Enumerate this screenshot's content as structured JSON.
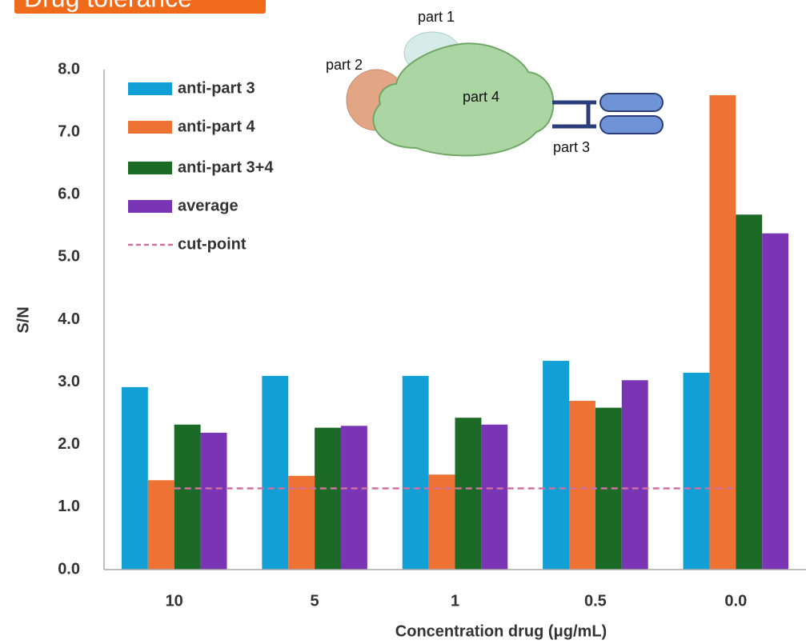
{
  "chart_data": {
    "type": "bar",
    "title": "Drug tolerance",
    "x_label": "Concentration drug (μg/mL)",
    "y_label": "S/N",
    "categories": [
      "10",
      "5",
      "1",
      "0.5",
      "0.0"
    ],
    "series": [
      {
        "name": "anti-part 3",
        "color": "#129fd6",
        "values": [
          2.92,
          3.1,
          3.1,
          3.34,
          3.15
        ]
      },
      {
        "name": "anti-part 4",
        "color": "#ed7233",
        "values": [
          1.43,
          1.5,
          1.52,
          2.7,
          7.59
        ]
      },
      {
        "name": "anti-part 3+4",
        "color": "#1b6b27",
        "values": [
          2.32,
          2.27,
          2.43,
          2.59,
          5.68
        ]
      },
      {
        "name": "average",
        "color": "#7a35b5",
        "values": [
          2.19,
          2.3,
          2.32,
          3.03,
          5.38
        ]
      }
    ],
    "cut_point": {
      "name": "cut-point",
      "color": "#d070a0",
      "values": [
        1.3,
        1.3,
        1.3,
        1.3,
        1.3
      ]
    },
    "ylim": [
      0,
      8
    ],
    "yticks": [
      {
        "value": 0,
        "label": "0.0"
      },
      {
        "value": 1,
        "label": "1.0"
      },
      {
        "value": 2,
        "label": "2.0"
      },
      {
        "value": 3,
        "label": "3.0"
      },
      {
        "value": 4,
        "label": "4.0"
      },
      {
        "value": 5,
        "label": "5.0"
      },
      {
        "value": 6,
        "label": "6.0"
      },
      {
        "value": 7,
        "label": "7.0"
      },
      {
        "value": 8,
        "label": "8.0"
      }
    ],
    "legend": "top-left",
    "grid": false
  },
  "diagram": {
    "labels": [
      "part 1",
      "part 2",
      "part 4",
      "part 3"
    ]
  }
}
